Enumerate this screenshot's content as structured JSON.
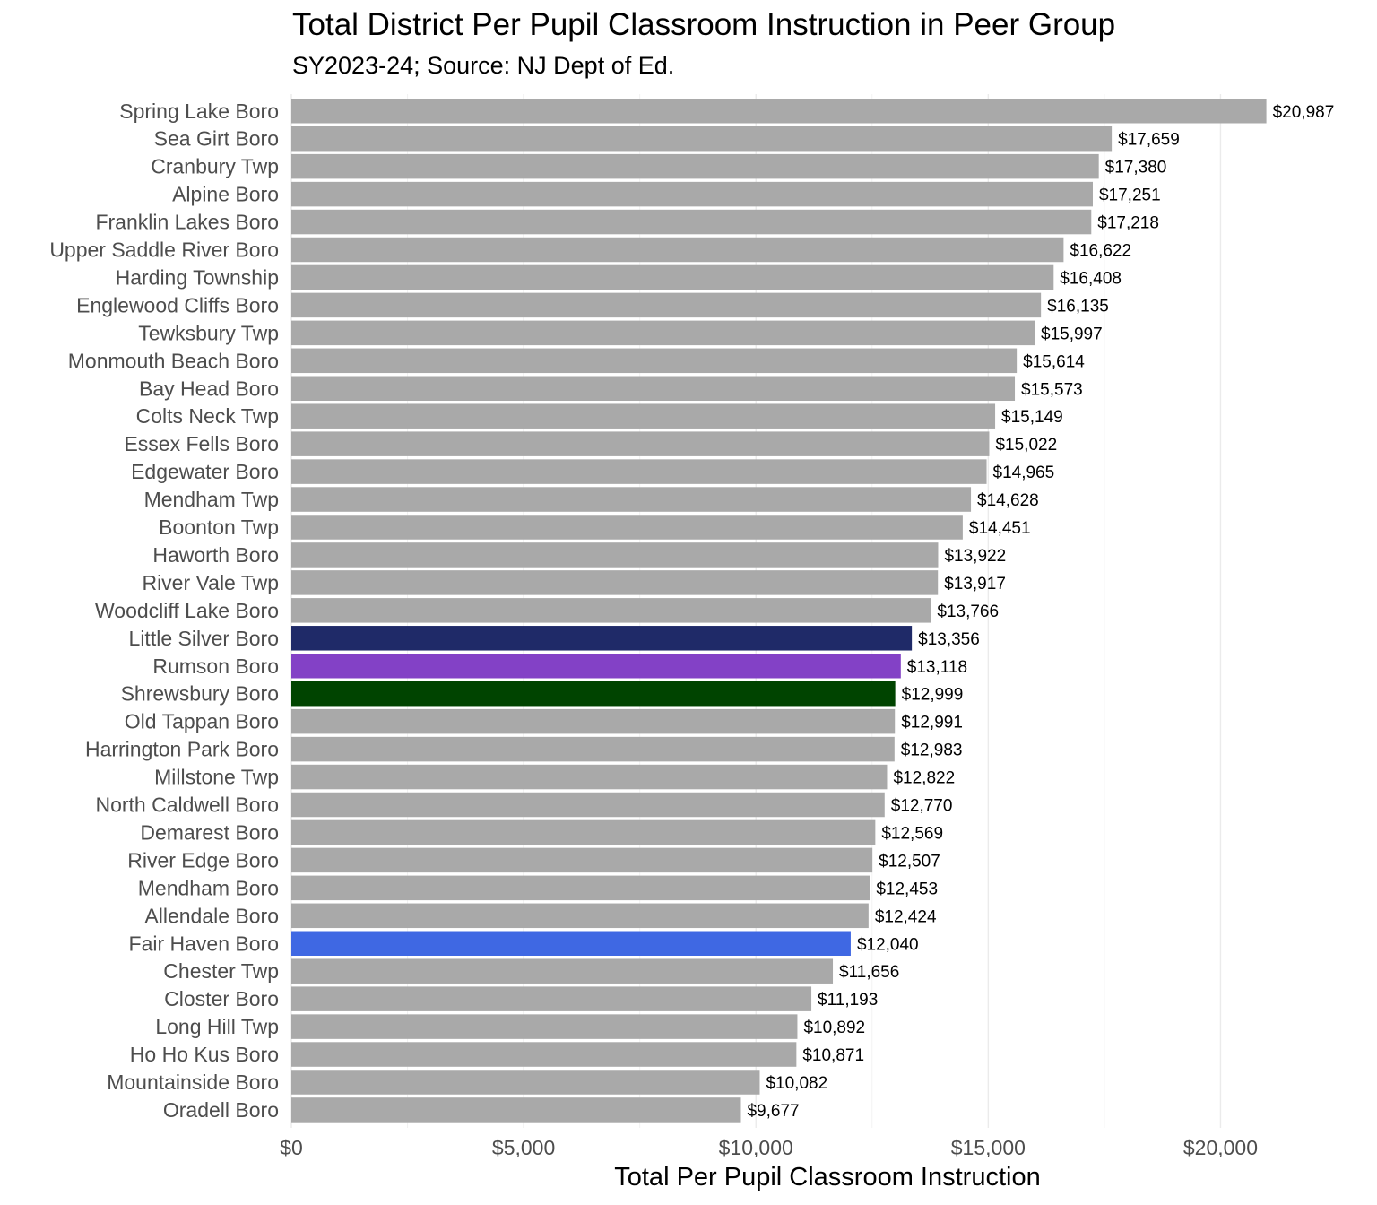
{
  "chart_data": {
    "type": "bar",
    "orientation": "horizontal",
    "title": "Total District Per Pupil Classroom Instruction in Peer Group",
    "subtitle": "SY2023-24; Source: NJ Dept of Ed.",
    "xlabel": "Total Per Pupil Classroom Instruction",
    "ylabel": "",
    "xlim": [
      0,
      21000
    ],
    "x_ticks": [
      0,
      5000,
      10000,
      15000,
      20000
    ],
    "x_tick_labels": [
      "$0",
      "$5,000",
      "$10,000",
      "$15,000",
      "$20,000"
    ],
    "grid": "vertical",
    "legend": "none",
    "default_color": "#a9a9a9",
    "categories": [
      "Spring Lake Boro",
      "Sea Girt Boro",
      "Cranbury Twp",
      "Alpine Boro",
      "Franklin Lakes Boro",
      "Upper Saddle River Boro",
      "Harding Township",
      "Englewood Cliffs Boro",
      "Tewksbury Twp",
      "Monmouth Beach Boro",
      "Bay Head Boro",
      "Colts Neck Twp",
      "Essex Fells Boro",
      "Edgewater Boro",
      "Mendham Twp",
      "Boonton Twp",
      "Haworth Boro",
      "River Vale Twp",
      "Woodcliff Lake Boro",
      "Little Silver Boro",
      "Rumson Boro",
      "Shrewsbury Boro",
      "Old Tappan Boro",
      "Harrington Park Boro",
      "Millstone Twp",
      "North Caldwell Boro",
      "Demarest Boro",
      "River Edge Boro",
      "Mendham Boro",
      "Allendale Boro",
      "Fair Haven Boro",
      "Chester Twp",
      "Closter Boro",
      "Long Hill Twp",
      "Ho Ho Kus Boro",
      "Mountainside Boro",
      "Oradell Boro"
    ],
    "values": [
      20987,
      17659,
      17380,
      17251,
      17218,
      16622,
      16408,
      16135,
      15997,
      15614,
      15573,
      15149,
      15022,
      14965,
      14628,
      14451,
      13922,
      13917,
      13766,
      13356,
      13118,
      12999,
      12991,
      12983,
      12822,
      12770,
      12569,
      12507,
      12453,
      12424,
      12040,
      11656,
      11193,
      10892,
      10871,
      10082,
      9677
    ],
    "value_labels": [
      "$20,987",
      "$17,659",
      "$17,380",
      "$17,251",
      "$17,218",
      "$16,622",
      "$16,408",
      "$16,135",
      "$15,997",
      "$15,614",
      "$15,573",
      "$15,149",
      "$15,022",
      "$14,965",
      "$14,628",
      "$14,451",
      "$13,922",
      "$13,917",
      "$13,766",
      "$13,356",
      "$13,118",
      "$12,999",
      "$12,991",
      "$12,983",
      "$12,822",
      "$12,770",
      "$12,569",
      "$12,507",
      "$12,453",
      "$12,424",
      "$12,040",
      "$11,656",
      "$11,193",
      "$10,892",
      "$10,871",
      "$10,082",
      "$9,677"
    ],
    "highlights": {
      "Little Silver Boro": "#1f2a68",
      "Rumson Boro": "#8341c6",
      "Shrewsbury Boro": "#004400",
      "Fair Haven Boro": "#3f68e3"
    }
  }
}
